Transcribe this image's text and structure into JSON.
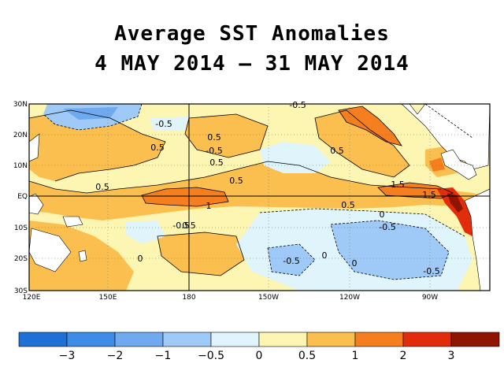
{
  "title_line1": "Average SST Anomalies",
  "title_line2": "4 MAY 2014 – 31 MAY 2014",
  "map": {
    "lon_labels": [
      "120E",
      "150E",
      "180",
      "150W",
      "120W",
      "90W"
    ],
    "lat_labels": [
      "30N",
      "20N",
      "10N",
      "EQ",
      "10S",
      "20S",
      "30S"
    ],
    "contour_labels": [
      "-0.5",
      "0.5",
      "0.5",
      "-0.5",
      "0.5",
      "0.5",
      "0.5",
      "1.5",
      "1",
      "0.5",
      "1.5",
      "0",
      "0.5",
      "-0.5",
      "-0.5",
      "0",
      "-0.5",
      "0",
      "0",
      "-0.5",
      "0.5",
      "-0.5"
    ]
  },
  "colorbar": {
    "tick_labels": [
      "−3",
      "−2",
      "−1",
      "−0.5",
      "0",
      "0.5",
      "1",
      "2",
      "3"
    ],
    "colors": [
      "#1e6fd6",
      "#3d8ce8",
      "#6faaf0",
      "#9fc9f6",
      "#dff4fb",
      "#fdf6b3",
      "#fbbf4f",
      "#f57f1f",
      "#e22d0c",
      "#8f1500"
    ]
  }
}
